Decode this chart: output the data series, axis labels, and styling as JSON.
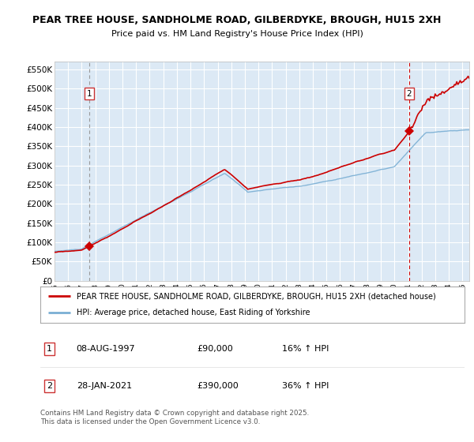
{
  "title_line1": "PEAR TREE HOUSE, SANDHOLME ROAD, GILBERDYKE, BROUGH, HU15 2XH",
  "title_line2": "Price paid vs. HM Land Registry's House Price Index (HPI)",
  "ylim": [
    0,
    570000
  ],
  "yticks": [
    0,
    50000,
    100000,
    150000,
    200000,
    250000,
    300000,
    350000,
    400000,
    450000,
    500000,
    550000
  ],
  "ytick_labels": [
    "£0",
    "£50K",
    "£100K",
    "£150K",
    "£200K",
    "£250K",
    "£300K",
    "£350K",
    "£400K",
    "£450K",
    "£500K",
    "£550K"
  ],
  "background_color": "#dce9f5",
  "grid_color": "#ffffff",
  "red_line_color": "#cc0000",
  "blue_line_color": "#7aafd4",
  "marker1_date": 1997.58,
  "marker1_value": 90000,
  "marker2_date": 2021.08,
  "marker2_value": 390000,
  "legend_label1": "PEAR TREE HOUSE, SANDHOLME ROAD, GILBERDYKE, BROUGH, HU15 2XH (detached house)",
  "legend_label2": "HPI: Average price, detached house, East Riding of Yorkshire",
  "table_row1": [
    "1",
    "08-AUG-1997",
    "£90,000",
    "16% ↑ HPI"
  ],
  "table_row2": [
    "2",
    "28-JAN-2021",
    "£390,000",
    "36% ↑ HPI"
  ],
  "footnote": "Contains HM Land Registry data © Crown copyright and database right 2025.\nThis data is licensed under the Open Government Licence v3.0.",
  "xmin": 1995.0,
  "xmax": 2025.5,
  "xticks": [
    1995,
    1996,
    1997,
    1998,
    1999,
    2000,
    2001,
    2002,
    2003,
    2004,
    2005,
    2006,
    2007,
    2008,
    2009,
    2010,
    2011,
    2012,
    2013,
    2014,
    2015,
    2016,
    2017,
    2018,
    2019,
    2020,
    2021,
    2022,
    2023,
    2024,
    2025
  ]
}
